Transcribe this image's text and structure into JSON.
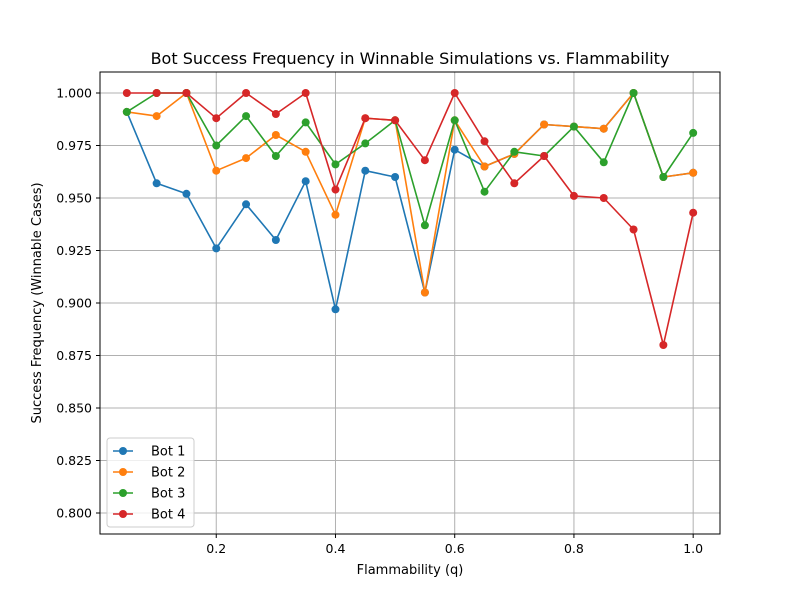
{
  "chart_data": {
    "type": "line",
    "title": "Bot Success Frequency in Winnable Simulations vs. Flammability",
    "xlabel": "Flammability (q)",
    "ylabel": "Success Frequency (Winnable Cases)",
    "xlim": [
      0.005,
      1.045
    ],
    "ylim": [
      0.79,
      1.01
    ],
    "xticks": [
      0.2,
      0.4,
      0.6,
      0.8,
      1.0
    ],
    "xtick_labels": [
      "0.2",
      "0.4",
      "0.6",
      "0.8",
      "1.0"
    ],
    "yticks": [
      0.8,
      0.825,
      0.85,
      0.875,
      0.9,
      0.925,
      0.95,
      0.975,
      1.0
    ],
    "ytick_labels": [
      "0.800",
      "0.825",
      "0.850",
      "0.875",
      "0.900",
      "0.925",
      "0.950",
      "0.975",
      "1.000"
    ],
    "grid": true,
    "legend_position": "lower-left",
    "x": [
      0.05,
      0.1,
      0.15,
      0.2,
      0.25,
      0.3,
      0.35,
      0.4,
      0.45,
      0.5,
      0.55,
      0.6,
      0.65,
      0.7,
      0.75,
      0.8,
      0.85,
      0.9,
      0.95,
      1.0
    ],
    "series": [
      {
        "name": "Bot 1",
        "color": "#1f77b4",
        "values": [
          0.991,
          0.957,
          0.952,
          0.926,
          0.947,
          0.93,
          0.958,
          0.897,
          0.963,
          0.96,
          0.905,
          0.973,
          0.965,
          0.971,
          0.985,
          0.984,
          0.983,
          1.0,
          0.96,
          0.962
        ]
      },
      {
        "name": "Bot 2",
        "color": "#ff7f0e",
        "values": [
          0.991,
          0.989,
          1.0,
          0.963,
          0.969,
          0.98,
          0.972,
          0.942,
          0.988,
          0.987,
          0.905,
          0.987,
          0.965,
          0.971,
          0.985,
          0.984,
          0.983,
          1.0,
          0.96,
          0.962
        ]
      },
      {
        "name": "Bot 3",
        "color": "#2ca02c",
        "values": [
          0.991,
          1.0,
          1.0,
          0.975,
          0.989,
          0.97,
          0.986,
          0.966,
          0.976,
          0.987,
          0.937,
          0.987,
          0.953,
          0.972,
          0.97,
          0.984,
          0.967,
          1.0,
          0.96,
          0.981
        ]
      },
      {
        "name": "Bot 4",
        "color": "#d62728",
        "values": [
          1.0,
          1.0,
          1.0,
          0.988,
          1.0,
          0.99,
          1.0,
          0.954,
          0.988,
          0.987,
          0.968,
          1.0,
          0.977,
          0.957,
          0.97,
          0.951,
          0.95,
          0.935,
          0.88,
          0.943
        ]
      }
    ]
  }
}
